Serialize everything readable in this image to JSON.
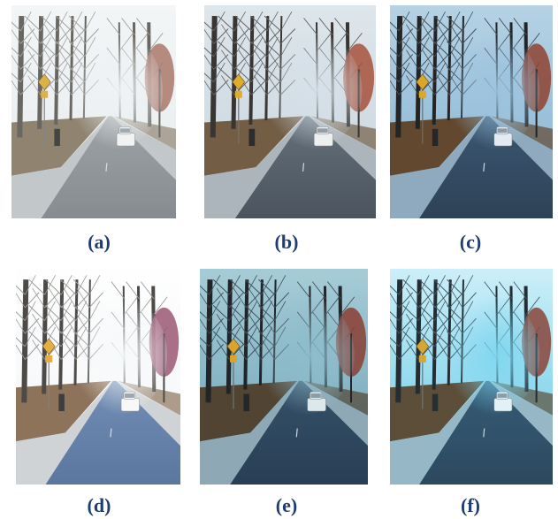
{
  "figure": {
    "panels": [
      {
        "label": "(a)",
        "variant": "hazy"
      },
      {
        "label": "(b)",
        "variant": "dehazed-natural"
      },
      {
        "label": "(c)",
        "variant": "dehazed-dark-blue"
      },
      {
        "label": "(d)",
        "variant": "over-bright"
      },
      {
        "label": "(e)",
        "variant": "dehazed-teal"
      },
      {
        "label": "(f)",
        "variant": "dehazed-bright-center"
      }
    ]
  }
}
